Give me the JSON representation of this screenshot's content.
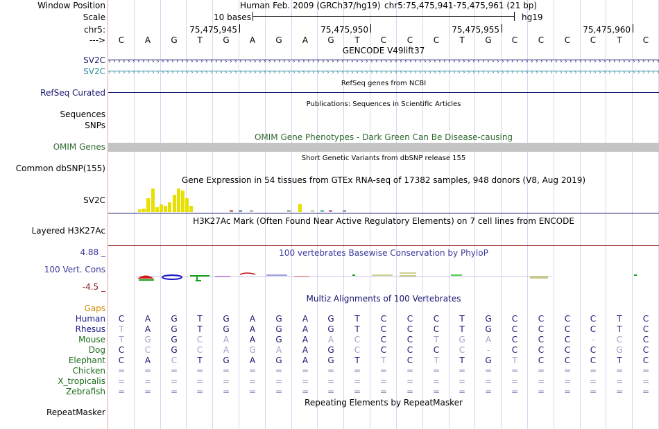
{
  "labels": {
    "window_position": "Window Position",
    "scale": "Scale",
    "chr": "chr5:",
    "arrow": "--->",
    "sv2c_a": "SV2C",
    "sv2c_b": "SV2C",
    "refseq": "RefSeq Curated",
    "sequences": "Sequences",
    "snps": "SNPs",
    "omim": "OMIM Genes",
    "common_dbsnp": "Common dbSNP(155)",
    "sv2c_gtex": "SV2C",
    "layered": "Layered H3K27Ac",
    "cons_max": "4.88 _",
    "cons": "100 Vert. Cons",
    "cons_min": "-4.5 _",
    "gaps": "Gaps"
  },
  "header": {
    "assembly": "Human Feb. 2009 (GRCh37/hg19)",
    "position": "chr5:75,475,941-75,475,961 (21 bp)",
    "scale_text": "10 bases",
    "scale_db": "hg19",
    "coords": [
      "75,475,945",
      "75,475,950",
      "75,475,955",
      "75,475,960"
    ]
  },
  "bases": [
    "C",
    "A",
    "G",
    "T",
    "G",
    "A",
    "G",
    "A",
    "G",
    "T",
    "C",
    "C",
    "C",
    "T",
    "G",
    "C",
    "C",
    "C",
    "C",
    "T",
    "C"
  ],
  "titles": {
    "gencode": "GENCODE V49lift37",
    "refseq": "RefSeq genes from NCBI",
    "pubs": "Publications: Sequences in Scientific Articles",
    "omim": "OMIM Gene Phenotypes - Dark Green Can Be Disease-causing",
    "dbsnp": "Short Genetic Variants from dbSNP release 155",
    "gtex": "Gene Expression in 54 tissues from GTEx RNA-seq of 17382 samples, 948 donors (V8, Aug 2019)",
    "h3k27ac": "H3K27Ac Mark (Often Found Near Active Regulatory Elements) on 7 cell lines from ENCODE",
    "phylop": "100 vertebrates Basewise Conservation by PhyloP",
    "multiz": "Multiz Alignments of 100 Vertebrates",
    "rmsk": "Repeating Elements by RepeatMasker"
  },
  "species": [
    {
      "name": "Human",
      "seq": "CAGTGAGAGTCCCTGCCCCTC",
      "color": "#1a1a8c"
    },
    {
      "name": "Rhesus",
      "seq": "TAGTGAGAGTCCCTGCCCCTC",
      "color": "#1a1a8c"
    },
    {
      "name": "Mouse",
      "seq": "TGGCAAGAACCCTGACCC-CC",
      "color": "#1a6b1a"
    },
    {
      "name": "Dog",
      "seq": "CCGCAGAAGCCCCC-CCCCGC",
      "color": "#1a6b1a"
    },
    {
      "name": "Elephant",
      "seq": "CACTGAGAGTTCTTGTCCCTC",
      "color": "#1a6b1a"
    },
    {
      "name": "Chicken",
      "seq": "=====================",
      "color": "#1a6b1a"
    },
    {
      "name": "X_tropicalis",
      "seq": "=====================",
      "color": "#1a6b1a"
    },
    {
      "name": "Zebrafish",
      "seq": "=====================",
      "color": "#1a6b1a"
    }
  ],
  "last_track": "RepeatMasker",
  "colors": {
    "navy": "#14146e",
    "omim_green": "#2e6b2e",
    "teal": "#2a8a9e",
    "gap_orange": "#d08a00",
    "cons_blue": "#3a3a9c",
    "cons_red": "#8c1a1a",
    "gtex_yellow": "#e8e000",
    "omim_bar": "#c4c4c4"
  },
  "gtex_levels": [
    0.1,
    0.15,
    0.55,
    0.95,
    0.2,
    0.3,
    0.25,
    0.4,
    0.7,
    0.95,
    0.85,
    0.55,
    0.25
  ]
}
